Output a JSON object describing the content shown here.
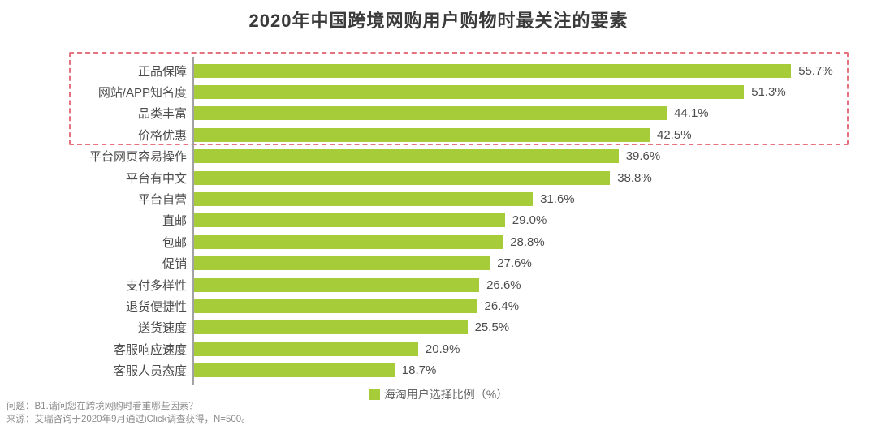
{
  "title": "2020年中国跨境网购用户购物时最关注的要素",
  "legend": {
    "label": "海淘用户选择比例（%）"
  },
  "footer": {
    "question": "问题：B1.请问您在跨境网购时看重哪些因素？",
    "source": "来源：艾瑞咨询于2020年9月通过iClick调查获得，N=500。"
  },
  "colors": {
    "bar": "#a6cc39",
    "highlight_border": "#e6717f",
    "axis": "#a3a3a3"
  },
  "chart_data": {
    "type": "bar",
    "orientation": "horizontal",
    "title": "2020年中国跨境网购用户购物时最关注的要素",
    "series_name": "海淘用户选择比例（%）",
    "value_suffix": "%",
    "xlim": [
      0,
      60
    ],
    "grid": false,
    "legend_position": "bottom",
    "categories": [
      "正品保障",
      "网站/APP知名度",
      "品类丰富",
      "价格优惠",
      "平台网页容易操作",
      "平台有中文",
      "平台自营",
      "直邮",
      "包邮",
      "促销",
      "支付多样性",
      "退货便捷性",
      "送货速度",
      "客服响应速度",
      "客服人员态度"
    ],
    "values": [
      55.7,
      51.3,
      44.1,
      42.5,
      39.6,
      38.8,
      31.6,
      29.0,
      28.8,
      27.6,
      26.6,
      26.4,
      25.5,
      20.9,
      18.7
    ],
    "highlighted_categories": [
      "正品保障",
      "网站/APP知名度",
      "品类丰富",
      "价格优惠"
    ],
    "highlight_style": "dashed pink-red rectangle around top 4 bars"
  }
}
